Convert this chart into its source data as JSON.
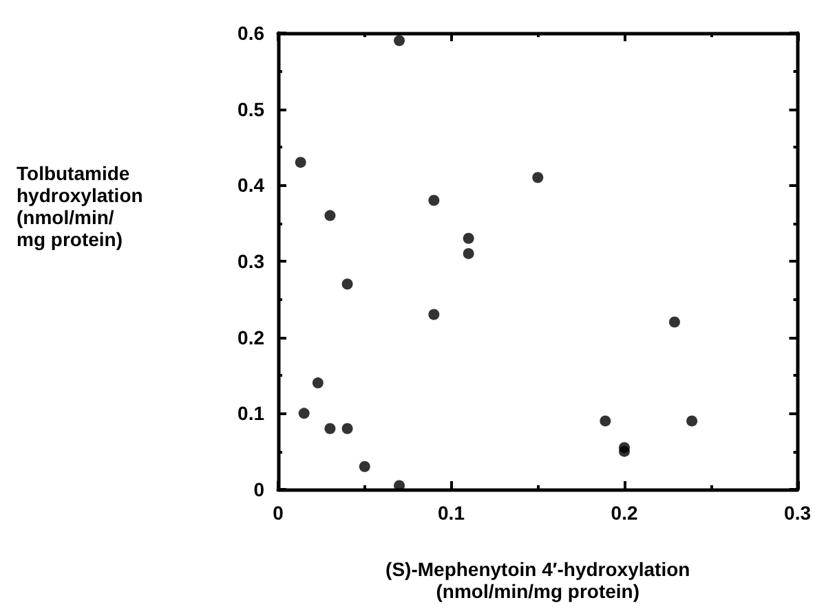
{
  "chart_data": {
    "type": "scatter",
    "xlabel": "(S)-Mephenytoin 4′-hydroxylation\n(nmol/min/mg protein)",
    "ylabel": "Tolbutamide\nhydroxylation\n(nmol/min/\nmg protein)",
    "x": [
      0.013,
      0.07,
      0.03,
      0.09,
      0.11,
      0.11,
      0.15,
      0.04,
      0.09,
      0.023,
      0.015,
      0.03,
      0.04,
      0.05,
      0.07,
      0.229,
      0.189,
      0.239,
      0.2,
      0.2
    ],
    "values": [
      0.43,
      0.59,
      0.36,
      0.38,
      0.33,
      0.31,
      0.41,
      0.27,
      0.23,
      0.14,
      0.1,
      0.08,
      0.08,
      0.03,
      0.005,
      0.22,
      0.09,
      0.09,
      0.055,
      0.05
    ],
    "color": "#000000",
    "marker": "circle",
    "xlim": [
      0,
      0.3
    ],
    "xticks": [
      0,
      0.1,
      0.2,
      0.3
    ],
    "ylim": [
      0,
      0.6
    ],
    "yticks": [
      0,
      0.1,
      0.2,
      0.3,
      0.4,
      0.5,
      0.6
    ],
    "grid": false
  }
}
